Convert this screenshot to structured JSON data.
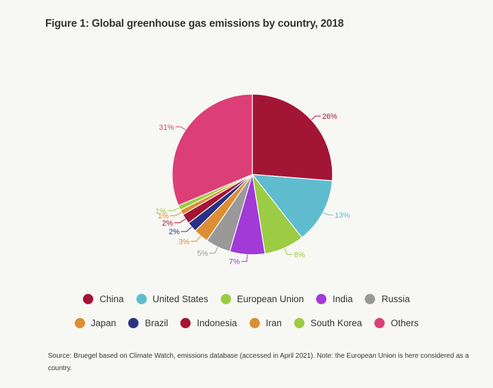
{
  "title": "Figure 1: Global greenhouse gas emissions by country, 2018",
  "source": "Source: Bruegel based on Climate Watch, emissions database (accessed in April 2021). Note: the European Union is here considered as a country.",
  "chart_data": {
    "type": "pie",
    "title": "Figure 1: Global greenhouse gas emissions by country, 2018",
    "legend_placement": "bottom",
    "slices": [
      {
        "name": "China",
        "value": 26,
        "label": "26%",
        "color": "#a31535"
      },
      {
        "name": "United States",
        "value": 13,
        "label": "13%",
        "color": "#5fbccf"
      },
      {
        "name": "European Union",
        "value": 8,
        "label": "8%",
        "color": "#9bcc43"
      },
      {
        "name": "India",
        "value": 7,
        "label": "7%",
        "color": "#a13ad6"
      },
      {
        "name": "Russia",
        "value": 5,
        "label": "5%",
        "color": "#999999"
      },
      {
        "name": "Japan",
        "value": 3,
        "label": "3%",
        "color": "#dc8e34"
      },
      {
        "name": "Brazil",
        "value": 2,
        "label": "2%",
        "color": "#2a3283"
      },
      {
        "name": "Indonesia",
        "value": 2,
        "label": "2%",
        "color": "#a31535"
      },
      {
        "name": "Iran",
        "value": 1,
        "label": "1%",
        "color": "#dc8e34"
      },
      {
        "name": "South Korea",
        "value": 1,
        "label": "1%",
        "color": "#9bcc43"
      },
      {
        "name": "Others",
        "value": 31,
        "label": "31%",
        "color": "#dc3f77"
      }
    ]
  }
}
